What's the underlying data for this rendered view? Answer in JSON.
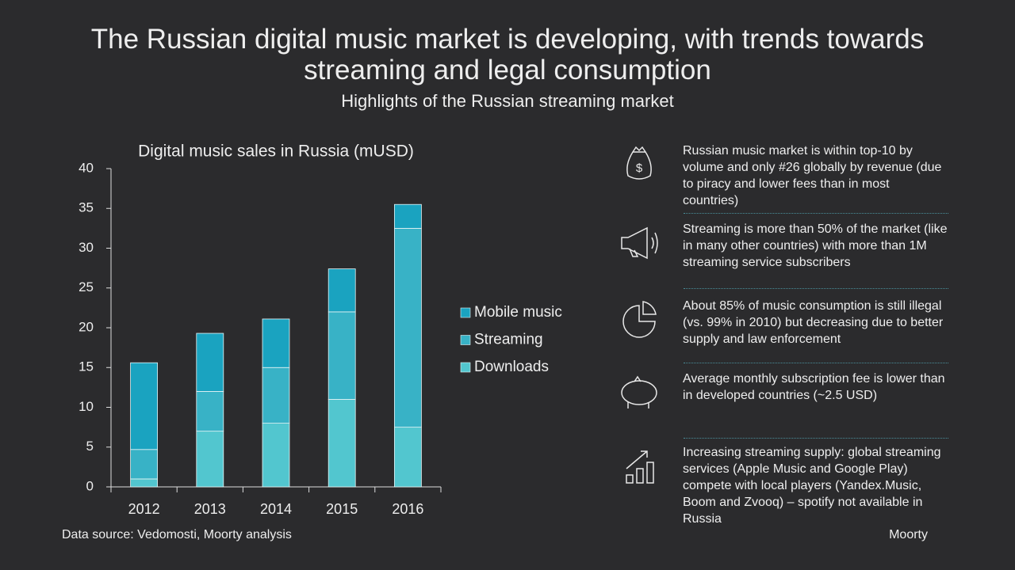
{
  "header": {
    "title": "The Russian digital music market is developing, with trends towards streaming and legal consumption",
    "subtitle": "Highlights of the Russian streaming market"
  },
  "chart_data": {
    "type": "stacked_bar",
    "title": "Digital music sales in Russia (mUSD)",
    "categories": [
      "2012",
      "2013",
      "2014",
      "2015",
      "2016"
    ],
    "series": [
      {
        "name": "Downloads",
        "color": "#52c6cf",
        "values": [
          1,
          7,
          8,
          11,
          7.5
        ]
      },
      {
        "name": "Streaming",
        "color": "#38b2c6",
        "values": [
          3.7,
          5,
          7,
          11,
          25
        ]
      },
      {
        "name": "Mobile music",
        "color": "#1aa3c0",
        "values": [
          10.9,
          7.3,
          6.1,
          5.4,
          3
        ]
      }
    ],
    "ylim": [
      0,
      40
    ],
    "yticks": [
      0,
      5,
      10,
      15,
      20,
      25,
      30,
      35,
      40
    ],
    "grid": false
  },
  "highlights": [
    "Russian music market is within top-10 by volume and only #26 globally by revenue (due to piracy and lower fees than in most countries)",
    "Streaming is more than 50% of the market (like in many other countries) with more than 1M streaming service subscribers",
    "About 85% of music consumption is still illegal (vs. 99% in 2010) but decreasing due to better supply and law enforcement",
    "Average monthly subscription fee is lower than in developed countries (~2.5 USD)",
    "Increasing streaming supply: global streaming services (Apple Music and Google Play) compete with local players (Yandex.Music, Boom and Zvooq) – spotify not available in Russia"
  ],
  "footer": {
    "source": "Data source: Vedomosti, Moorty analysis",
    "brand": "Moorty"
  }
}
